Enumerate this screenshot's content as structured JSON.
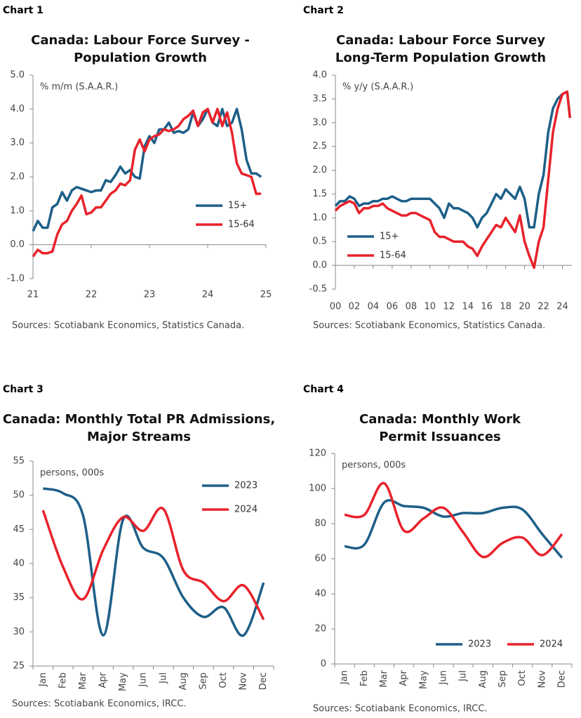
{
  "chart_data": [
    {
      "type": "line",
      "label": "Chart 1",
      "title": [
        "Canada: Labour Force Survey -",
        "Population Growth"
      ],
      "unit_label": "% m/m (S.A.A.R.)",
      "source": "Sources: Scotiabank Economics, Statistics Canada.",
      "legend": "lower right",
      "x": [
        21,
        21.083,
        21.167,
        21.25,
        21.333,
        21.417,
        21.5,
        21.583,
        21.667,
        21.75,
        21.833,
        21.917,
        22,
        22.083,
        22.167,
        22.25,
        22.333,
        22.417,
        22.5,
        22.583,
        22.667,
        22.75,
        22.833,
        22.917,
        23,
        23.083,
        23.167,
        23.25,
        23.333,
        23.417,
        23.5,
        23.583,
        23.667,
        23.75,
        23.833,
        23.917,
        24,
        24.083,
        24.167,
        24.25,
        24.333,
        24.417,
        24.5,
        24.583,
        24.667,
        24.75,
        24.833,
        24.917
      ],
      "series": [
        {
          "name": "15+",
          "color": "#1d5f88",
          "values": [
            0.4,
            0.7,
            0.5,
            0.5,
            1.1,
            1.2,
            1.55,
            1.3,
            1.6,
            1.7,
            1.65,
            1.6,
            1.55,
            1.6,
            1.6,
            1.9,
            1.85,
            2.05,
            2.3,
            2.1,
            2.2,
            2.0,
            1.95,
            2.9,
            3.2,
            3.0,
            3.4,
            3.4,
            3.6,
            3.3,
            3.35,
            3.3,
            3.4,
            3.9,
            3.5,
            3.7,
            4.0,
            3.6,
            3.5,
            4.0,
            3.5,
            3.6,
            4.0,
            3.4,
            2.5,
            2.1,
            2.1,
            2.0
          ]
        },
        {
          "name": "15-64",
          "color": "#e8222b",
          "values": [
            -0.35,
            -0.15,
            -0.25,
            -0.25,
            -0.2,
            0.3,
            0.6,
            0.7,
            1.0,
            1.2,
            1.45,
            0.9,
            0.95,
            1.1,
            1.1,
            1.3,
            1.5,
            1.6,
            1.8,
            1.75,
            1.9,
            2.8,
            3.1,
            2.75,
            3.1,
            3.2,
            3.25,
            3.4,
            3.35,
            3.4,
            3.5,
            3.7,
            3.8,
            3.95,
            3.5,
            3.9,
            4.0,
            3.6,
            4.0,
            3.5,
            3.9,
            3.3,
            2.4,
            2.1,
            2.05,
            2.0,
            1.5,
            1.5
          ]
        }
      ],
      "xlim": [
        21,
        25
      ],
      "xticks": [
        21,
        22,
        23,
        24,
        25
      ],
      "ylim": [
        -1,
        5
      ],
      "yticks": [
        {
          "value": -1,
          "label": "-1.0"
        },
        {
          "value": 0,
          "label": "0.0"
        },
        {
          "value": 1,
          "label": "1.0"
        },
        {
          "value": 2,
          "label": "2.0"
        },
        {
          "value": 3,
          "label": "3.0"
        },
        {
          "value": 4,
          "label": "4.0"
        },
        {
          "value": 5,
          "label": "5.0"
        }
      ]
    },
    {
      "type": "line",
      "label": "Chart 2",
      "title": [
        "Canada: Labour Force Survey",
        "Long-Term Population Growth"
      ],
      "unit_label": "% y/y (S.A.A.R.)",
      "source": "Sources: Scotiabank Economics, Statistics Canada.",
      "legend": "lower left",
      "x": [
        0,
        0.5,
        1,
        1.5,
        2,
        2.5,
        3,
        3.5,
        4,
        4.5,
        5,
        5.5,
        6,
        6.5,
        7,
        7.5,
        8,
        8.5,
        9,
        9.5,
        10,
        10.5,
        11,
        11.5,
        12,
        12.5,
        13,
        13.5,
        14,
        14.5,
        15,
        15.5,
        16,
        16.5,
        17,
        17.5,
        18,
        18.5,
        19,
        19.5,
        20,
        20.5,
        21,
        21.5,
        22,
        22.5,
        23,
        23.5,
        24,
        24.5,
        24.8
      ],
      "series": [
        {
          "name": "15+",
          "color": "#1d5f88",
          "values": [
            1.25,
            1.35,
            1.35,
            1.45,
            1.4,
            1.25,
            1.3,
            1.3,
            1.35,
            1.35,
            1.4,
            1.4,
            1.45,
            1.4,
            1.35,
            1.35,
            1.4,
            1.4,
            1.4,
            1.4,
            1.4,
            1.3,
            1.2,
            1.0,
            1.3,
            1.2,
            1.2,
            1.15,
            1.1,
            1.0,
            0.8,
            1.0,
            1.1,
            1.3,
            1.5,
            1.4,
            1.6,
            1.5,
            1.4,
            1.65,
            1.4,
            0.8,
            0.8,
            1.5,
            1.9,
            2.8,
            3.3,
            3.5,
            3.6,
            3.65,
            3.1
          ]
        },
        {
          "name": "15-64",
          "color": "#e8222b",
          "values": [
            1.15,
            1.25,
            1.3,
            1.35,
            1.3,
            1.1,
            1.2,
            1.2,
            1.25,
            1.25,
            1.3,
            1.2,
            1.15,
            1.1,
            1.05,
            1.05,
            1.1,
            1.1,
            1.05,
            1.0,
            0.95,
            0.7,
            0.6,
            0.6,
            0.55,
            0.5,
            0.5,
            0.5,
            0.4,
            0.35,
            0.2,
            0.4,
            0.55,
            0.7,
            0.85,
            0.8,
            1.0,
            0.85,
            0.7,
            1.05,
            0.5,
            0.2,
            -0.05,
            0.5,
            0.8,
            1.8,
            2.8,
            3.3,
            3.6,
            3.65,
            3.1
          ]
        }
      ],
      "xlim": [
        0,
        25
      ],
      "xticks": [
        {
          "value": 0,
          "label": "00"
        },
        {
          "value": 2,
          "label": "02"
        },
        {
          "value": 4,
          "label": "04"
        },
        {
          "value": 6,
          "label": "06"
        },
        {
          "value": 8,
          "label": "08"
        },
        10,
        12,
        14,
        16,
        18,
        20,
        22,
        24
      ],
      "ylim": [
        -0.5,
        4
      ],
      "yticks": [
        -0.5,
        {
          "value": 0,
          "label": "0.0"
        },
        0.5,
        {
          "value": 1,
          "label": "1.0"
        },
        1.5,
        {
          "value": 2,
          "label": "2.0"
        },
        2.5,
        {
          "value": 3,
          "label": "3.0"
        },
        3.5,
        {
          "value": 4,
          "label": "4.0"
        }
      ]
    },
    {
      "type": "line",
      "label": "Chart 3",
      "title": [
        "Canada: Monthly Total PR Admissions,",
        "Major Streams"
      ],
      "unit_label": "persons, 000s",
      "source": "Sources: Scotiabank Economics, IRCC.",
      "legend": "upper right",
      "smooth": true,
      "categories": [
        "Jan",
        "Feb",
        "Mar",
        "Apr",
        "May",
        "Jun",
        "Jul",
        "Aug",
        "Sep",
        "Oct",
        "Nov",
        "Dec"
      ],
      "series": [
        {
          "name": "2023",
          "color": "#1d5f88",
          "values": [
            51,
            50.3,
            47,
            29.5,
            46.5,
            42.3,
            40.8,
            35,
            32.2,
            33.6,
            29.5,
            37.2
          ]
        },
        {
          "name": "2024",
          "color": "#e8222b",
          "values": [
            47.8,
            39.5,
            34.8,
            42,
            46.8,
            44.8,
            48,
            39,
            37.2,
            34.5,
            36.8,
            31.8
          ]
        }
      ],
      "ylim": [
        25,
        55
      ],
      "yticks": [
        25,
        30,
        35,
        40,
        45,
        50,
        55
      ]
    },
    {
      "type": "line",
      "label": "Chart 4",
      "title": [
        "Canada: Monthly Work",
        "Permit Issuances"
      ],
      "unit_label": "persons, 000s",
      "source": "Sources: Scotiabank Economics, IRCC.",
      "legend": "lower center",
      "smooth": true,
      "categories": [
        "Jan",
        "Feb",
        "Mar",
        "Apr",
        "May",
        "Jun",
        "Jul",
        "Aug",
        "Sep",
        "Oct",
        "Nov",
        "Dec"
      ],
      "series": [
        {
          "name": "2023",
          "color": "#1d5f88",
          "values": [
            67,
            68,
            92,
            90,
            89,
            84,
            86,
            86,
            89,
            88,
            74,
            60.5
          ]
        },
        {
          "name": "2024",
          "color": "#e8222b",
          "values": [
            85,
            85,
            103,
            76,
            83,
            89,
            75,
            61,
            69,
            72,
            62,
            74
          ]
        }
      ],
      "ylim": [
        0,
        120
      ],
      "yticks": [
        0,
        20,
        40,
        60,
        80,
        100,
        120
      ]
    }
  ]
}
